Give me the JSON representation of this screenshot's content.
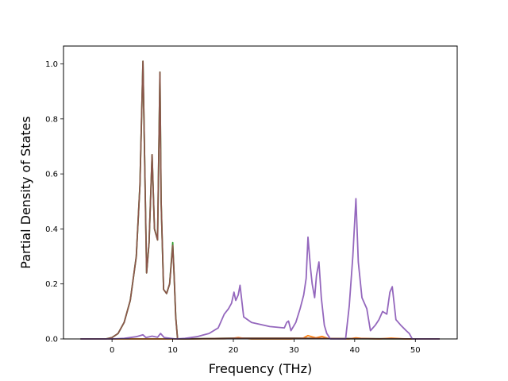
{
  "chart_data": {
    "type": "line",
    "xlabel": "Frequency (THz)",
    "ylabel": "Partial Density of States",
    "xlim": [
      -8.0,
      56.9
    ],
    "ylim": [
      0.0,
      1.065
    ],
    "x_ticks": [
      0,
      10,
      20,
      30,
      40,
      50
    ],
    "y_ticks": [
      0.0,
      0.2,
      0.4,
      0.6,
      0.8,
      1.0
    ],
    "x_tick_labels": [
      "0",
      "10",
      "20",
      "30",
      "40",
      "50"
    ],
    "y_tick_labels": [
      "0.0",
      "0.2",
      "0.4",
      "0.6",
      "0.8",
      "1.0"
    ],
    "grid": false,
    "legend": "none",
    "series": [
      {
        "color": "#2ca02c",
        "x": [
          -5.2,
          -1,
          0,
          1,
          2,
          3,
          4,
          4.6,
          5.1,
          5.7,
          6.1,
          6.6,
          7.0,
          7.5,
          7.9,
          8.1,
          8.5,
          9.0,
          9.5,
          10.0,
          10.2,
          10.5,
          10.8,
          12,
          20,
          30,
          40,
          54
        ],
        "y": [
          0.0,
          0.0,
          0.005,
          0.02,
          0.06,
          0.14,
          0.3,
          0.56,
          1.01,
          0.24,
          0.35,
          0.67,
          0.4,
          0.36,
          0.97,
          0.5,
          0.18,
          0.165,
          0.2,
          0.35,
          0.25,
          0.08,
          0.0,
          0.0,
          0.003,
          0.003,
          0.001,
          0.0
        ]
      },
      {
        "color": "#ff7f0e",
        "x": [
          -5.2,
          10.8,
          18.5,
          19.8,
          20.8,
          21.8,
          23,
          29.5,
          31.5,
          32.3,
          32.9,
          33.6,
          34.6,
          35.6,
          39,
          40.2,
          41,
          44,
          46,
          48.5,
          54
        ],
        "y": [
          0.0,
          0.0,
          0.001,
          0.002,
          0.005,
          0.002,
          0.0,
          0.0,
          0.003,
          0.012,
          0.008,
          0.004,
          0.009,
          0.002,
          0.0,
          0.004,
          0.002,
          0.0,
          0.003,
          0.0,
          0.0
        ]
      },
      {
        "color": "#8c564b",
        "x": [
          -5.2,
          -1,
          0,
          1,
          2,
          3,
          4,
          4.6,
          5.1,
          5.7,
          6.1,
          6.6,
          7.0,
          7.5,
          7.9,
          8.1,
          8.5,
          9.0,
          9.5,
          10.0,
          10.2,
          10.5,
          10.8,
          12,
          20,
          30,
          40,
          54
        ],
        "y": [
          0.0,
          0.0,
          0.005,
          0.02,
          0.06,
          0.14,
          0.3,
          0.56,
          1.01,
          0.24,
          0.35,
          0.67,
          0.4,
          0.36,
          0.97,
          0.5,
          0.18,
          0.165,
          0.2,
          0.34,
          0.25,
          0.08,
          0.0,
          0.0,
          0.003,
          0.003,
          0.001,
          0.0
        ]
      },
      {
        "color": "#9467bd",
        "x": [
          -5.2,
          0,
          2,
          4,
          5.1,
          5.6,
          6.6,
          7.5,
          8.0,
          8.6,
          10.5,
          12,
          14,
          16,
          17.5,
          18.5,
          19.2,
          19.7,
          20.1,
          20.4,
          20.8,
          21.1,
          21.7,
          23,
          26,
          28.4,
          28.8,
          29.1,
          29.5,
          30.3,
          31.0,
          31.6,
          32.0,
          32.3,
          32.7,
          33.0,
          33.4,
          33.7,
          34.1,
          34.5,
          35.0,
          35.4,
          36.0,
          38.5,
          39.1,
          39.7,
          40.2,
          40.6,
          41.2,
          42.0,
          42.6,
          43.4,
          44.0,
          44.6,
          45.3,
          45.8,
          46.2,
          46.8,
          47.6,
          48.5,
          49.0,
          49.5,
          54
        ],
        "y": [
          0.0,
          0.0,
          0.002,
          0.008,
          0.015,
          0.005,
          0.01,
          0.006,
          0.02,
          0.005,
          0.0,
          0.002,
          0.008,
          0.02,
          0.04,
          0.09,
          0.11,
          0.13,
          0.17,
          0.14,
          0.16,
          0.195,
          0.08,
          0.06,
          0.045,
          0.04,
          0.06,
          0.065,
          0.03,
          0.06,
          0.11,
          0.16,
          0.22,
          0.37,
          0.26,
          0.2,
          0.15,
          0.23,
          0.28,
          0.15,
          0.05,
          0.02,
          0.0,
          0.0,
          0.12,
          0.3,
          0.51,
          0.28,
          0.15,
          0.11,
          0.03,
          0.05,
          0.07,
          0.1,
          0.09,
          0.17,
          0.19,
          0.07,
          0.05,
          0.03,
          0.02,
          0.0,
          0.0
        ]
      }
    ]
  }
}
